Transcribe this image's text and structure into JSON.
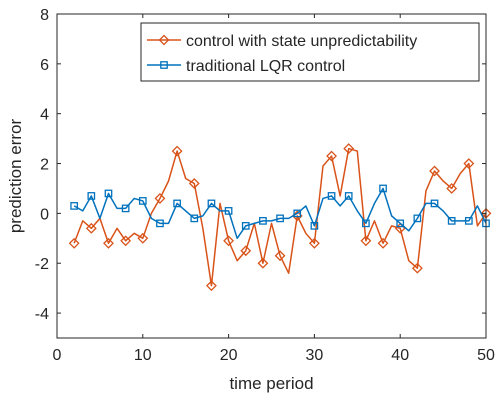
{
  "chart_data": {
    "type": "line",
    "xlabel": "time period",
    "ylabel": "prediction error",
    "xlim": [
      0,
      50
    ],
    "ylim": [
      -5,
      8
    ],
    "xticks": [
      0,
      10,
      20,
      30,
      40,
      50
    ],
    "yticks": [
      -4,
      -2,
      0,
      2,
      4,
      6,
      8
    ],
    "grid": false,
    "legend_position": "top-right",
    "series": [
      {
        "name": "control with state unpredictability",
        "color": "#d95319",
        "marker": "diamond",
        "x": [
          2,
          3,
          4,
          5,
          6,
          7,
          8,
          9,
          10,
          11,
          12,
          13,
          14,
          15,
          16,
          17,
          18,
          19,
          20,
          21,
          22,
          23,
          24,
          25,
          26,
          27,
          28,
          29,
          30,
          31,
          32,
          33,
          34,
          35,
          36,
          37,
          38,
          39,
          40,
          41,
          42,
          43,
          44,
          45,
          46,
          47,
          48,
          49,
          50
        ],
        "y": [
          -1.2,
          -0.3,
          -0.6,
          -0.2,
          -1.2,
          -0.6,
          -1.1,
          -0.8,
          -1.0,
          0.0,
          0.6,
          1.3,
          2.5,
          1.4,
          1.2,
          -0.6,
          -2.9,
          0.4,
          -1.1,
          -1.9,
          -1.5,
          -0.4,
          -2.0,
          -0.4,
          -1.7,
          -2.4,
          -0.1,
          -0.8,
          -1.2,
          1.9,
          2.3,
          0.7,
          2.6,
          2.5,
          -1.1,
          -0.3,
          -1.2,
          -0.5,
          -0.6,
          -1.9,
          -2.2,
          0.9,
          1.7,
          1.3,
          1.0,
          1.6,
          2.0,
          -0.5,
          0.0
        ]
      },
      {
        "name": "traditional LQR control",
        "color": "#0072bd",
        "marker": "square",
        "x": [
          2,
          3,
          4,
          5,
          6,
          7,
          8,
          9,
          10,
          11,
          12,
          13,
          14,
          15,
          16,
          17,
          18,
          19,
          20,
          21,
          22,
          23,
          24,
          25,
          26,
          27,
          28,
          29,
          30,
          31,
          32,
          33,
          34,
          35,
          36,
          37,
          38,
          39,
          40,
          41,
          42,
          43,
          44,
          45,
          46,
          47,
          48,
          49,
          50
        ],
        "y": [
          0.3,
          0.1,
          0.7,
          -0.2,
          0.8,
          0.2,
          0.2,
          0.6,
          0.5,
          -0.2,
          -0.4,
          -0.4,
          0.4,
          0.1,
          -0.2,
          -0.1,
          0.4,
          0.1,
          0.1,
          -1.0,
          -0.5,
          -0.4,
          -0.3,
          -0.3,
          -0.2,
          -0.2,
          0.0,
          0.3,
          -0.5,
          0.6,
          0.7,
          0.3,
          0.7,
          0.1,
          -0.4,
          0.4,
          1.0,
          -0.1,
          -0.4,
          -0.7,
          -0.2,
          0.4,
          0.4,
          0.1,
          -0.3,
          -0.3,
          -0.3,
          0.3,
          -0.4
        ]
      }
    ]
  }
}
